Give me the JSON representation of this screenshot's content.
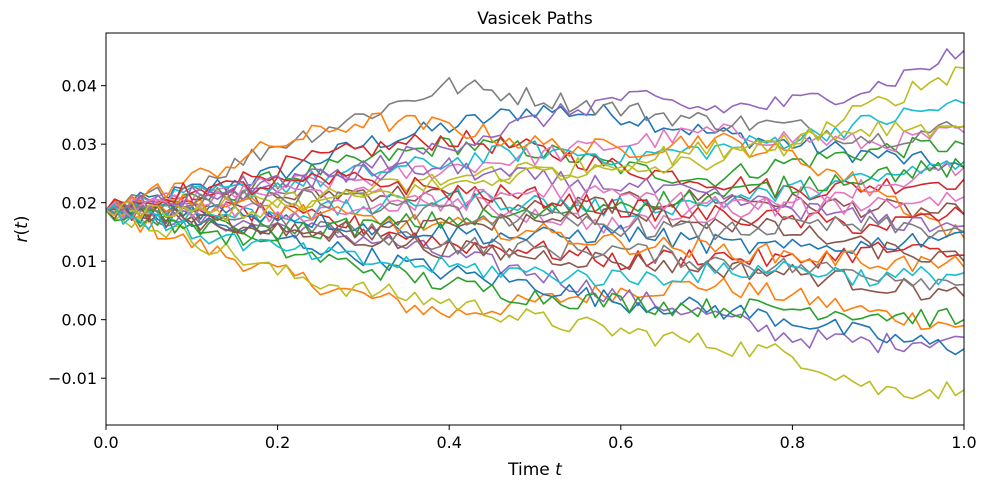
{
  "chart_data": {
    "type": "line",
    "title": "Vasicek Paths",
    "xlabel": {
      "text": "Time ",
      "var": "t"
    },
    "ylabel": {
      "pre": "r",
      "paren_open": "(",
      "var": "t",
      "paren_close": ")"
    },
    "xlim": [
      0.0,
      1.0
    ],
    "ylim": [
      -0.018,
      0.049
    ],
    "xticks": [
      0.0,
      0.2,
      0.4,
      0.6,
      0.8,
      1.0
    ],
    "xtick_labels": [
      "0.0",
      "0.2",
      "0.4",
      "0.6",
      "0.8",
      "1.0"
    ],
    "yticks": [
      -0.01,
      0.0,
      0.01,
      0.02,
      0.03,
      0.04
    ],
    "ytick_labels": [
      "−0.01",
      "0.00",
      "0.01",
      "0.02",
      "0.03",
      "0.04"
    ],
    "grid": false,
    "legend": "none",
    "initial_value": 0.0187,
    "colors": [
      "#1f77b4",
      "#ff7f0e",
      "#2ca02c",
      "#d62728",
      "#9467bd",
      "#8c564b",
      "#e377c2",
      "#7f7f7f",
      "#bcbd22",
      "#17becf"
    ],
    "x": [
      0.0,
      0.1,
      0.2,
      0.3,
      0.4,
      0.5,
      0.6,
      0.7,
      0.8,
      0.9,
      1.0
    ],
    "series": [
      {
        "values": [
          0.0187,
          0.022,
          0.025,
          0.03,
          0.033,
          0.036,
          0.035,
          0.032,
          0.03,
          0.028,
          0.026
        ]
      },
      {
        "values": [
          0.0187,
          0.013,
          0.008,
          0.004,
          0.001,
          0.003,
          0.005,
          0.006,
          0.004,
          0.001,
          -0.001
        ]
      },
      {
        "values": [
          0.0187,
          0.02,
          0.024,
          0.027,
          0.03,
          0.029,
          0.026,
          0.024,
          0.027,
          0.029,
          0.03
        ]
      },
      {
        "values": [
          0.0187,
          0.021,
          0.026,
          0.029,
          0.031,
          0.029,
          0.026,
          0.024,
          0.022,
          0.023,
          0.024
        ]
      },
      {
        "values": [
          0.0187,
          0.017,
          0.016,
          0.014,
          0.011,
          0.008,
          0.004,
          0.001,
          -0.003,
          -0.004,
          -0.003
        ]
      },
      {
        "values": [
          0.0187,
          0.02,
          0.021,
          0.022,
          0.021,
          0.019,
          0.02,
          0.021,
          0.02,
          0.019,
          0.018
        ]
      },
      {
        "values": [
          0.0187,
          0.021,
          0.023,
          0.024,
          0.026,
          0.028,
          0.03,
          0.032,
          0.031,
          0.03,
          0.032
        ]
      },
      {
        "values": [
          0.0187,
          0.023,
          0.03,
          0.035,
          0.04,
          0.038,
          0.036,
          0.034,
          0.033,
          0.031,
          0.033
        ]
      },
      {
        "values": [
          0.0187,
          0.014,
          0.008,
          0.005,
          0.003,
          0.0,
          -0.002,
          -0.004,
          -0.006,
          -0.012,
          -0.012
        ]
      },
      {
        "values": [
          0.0187,
          0.021,
          0.023,
          0.025,
          0.027,
          0.029,
          0.028,
          0.029,
          0.031,
          0.034,
          0.037
        ]
      },
      {
        "values": [
          0.0187,
          0.017,
          0.014,
          0.011,
          0.008,
          0.006,
          0.003,
          0.002,
          0.0,
          -0.003,
          -0.005
        ]
      },
      {
        "values": [
          0.0187,
          0.024,
          0.03,
          0.034,
          0.033,
          0.03,
          0.029,
          0.031,
          0.028,
          0.022,
          0.014
        ]
      },
      {
        "values": [
          0.0187,
          0.016,
          0.012,
          0.009,
          0.006,
          0.004,
          0.003,
          0.002,
          0.002,
          0.001,
          0.0
        ]
      },
      {
        "values": [
          0.0187,
          0.019,
          0.018,
          0.016,
          0.013,
          0.012,
          0.01,
          0.011,
          0.01,
          0.012,
          0.011
        ]
      },
      {
        "values": [
          0.0187,
          0.02,
          0.022,
          0.026,
          0.03,
          0.034,
          0.038,
          0.036,
          0.037,
          0.04,
          0.046
        ]
      },
      {
        "values": [
          0.0187,
          0.017,
          0.015,
          0.014,
          0.012,
          0.011,
          0.01,
          0.009,
          0.008,
          0.006,
          0.004
        ]
      },
      {
        "values": [
          0.0187,
          0.02,
          0.022,
          0.021,
          0.02,
          0.018,
          0.016,
          0.018,
          0.021,
          0.023,
          0.026
        ]
      },
      {
        "values": [
          0.0187,
          0.018,
          0.017,
          0.015,
          0.013,
          0.012,
          0.012,
          0.01,
          0.009,
          0.008,
          0.006
        ]
      },
      {
        "values": [
          0.0187,
          0.019,
          0.02,
          0.022,
          0.024,
          0.026,
          0.025,
          0.027,
          0.03,
          0.037,
          0.043
        ]
      },
      {
        "values": [
          0.0187,
          0.018,
          0.018,
          0.019,
          0.021,
          0.02,
          0.019,
          0.02,
          0.022,
          0.024,
          0.027
        ]
      },
      {
        "values": [
          0.0187,
          0.019,
          0.018,
          0.016,
          0.015,
          0.014,
          0.015,
          0.013,
          0.012,
          0.013,
          0.015
        ]
      },
      {
        "values": [
          0.0187,
          0.02,
          0.019,
          0.017,
          0.016,
          0.015,
          0.013,
          0.012,
          0.011,
          0.01,
          0.009
        ]
      },
      {
        "values": [
          0.0187,
          0.016,
          0.015,
          0.016,
          0.017,
          0.018,
          0.02,
          0.021,
          0.023,
          0.025,
          0.026
        ]
      },
      {
        "values": [
          0.0187,
          0.022,
          0.023,
          0.024,
          0.022,
          0.021,
          0.019,
          0.018,
          0.017,
          0.016,
          0.018
        ]
      },
      {
        "values": [
          0.0187,
          0.021,
          0.024,
          0.025,
          0.026,
          0.024,
          0.023,
          0.021,
          0.019,
          0.017,
          0.016
        ]
      },
      {
        "values": [
          0.0187,
          0.017,
          0.016,
          0.015,
          0.016,
          0.017,
          0.018,
          0.017,
          0.015,
          0.012,
          0.01
        ]
      },
      {
        "values": [
          0.0187,
          0.019,
          0.018,
          0.019,
          0.02,
          0.022,
          0.021,
          0.02,
          0.019,
          0.02,
          0.021
        ]
      },
      {
        "values": [
          0.0187,
          0.02,
          0.021,
          0.02,
          0.018,
          0.017,
          0.016,
          0.015,
          0.016,
          0.016,
          0.015
        ]
      },
      {
        "values": [
          0.0187,
          0.018,
          0.019,
          0.021,
          0.023,
          0.025,
          0.027,
          0.029,
          0.031,
          0.033,
          0.033
        ]
      },
      {
        "values": [
          0.0187,
          0.015,
          0.012,
          0.01,
          0.009,
          0.008,
          0.007,
          0.008,
          0.009,
          0.007,
          0.008
        ]
      }
    ]
  }
}
